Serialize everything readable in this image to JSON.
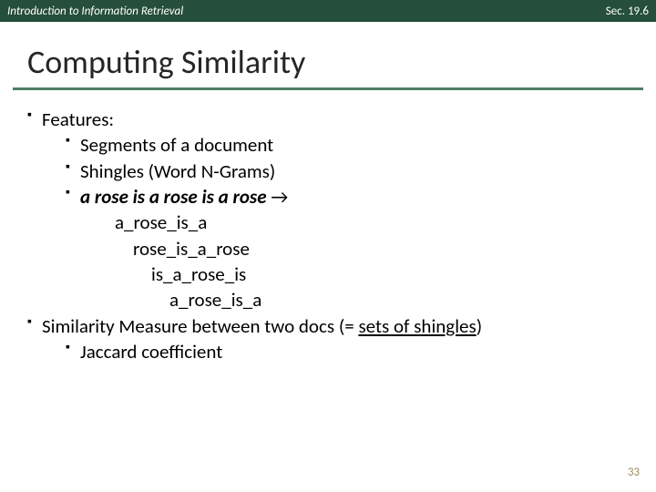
{
  "header": {
    "left": "Introduction to Information Retrieval",
    "right": "Sec. 19.6"
  },
  "title": "Computing Similarity",
  "bullets": {
    "features": "Features:",
    "segments": "Segments of a document",
    "shingles": "Shingles (Word N-Grams)",
    "rose_example": "a rose is a rose is a rose",
    "arrow": " →",
    "sh1": "a_rose_is_a",
    "sh2": "rose_is_a_rose",
    "sh3": "is_a_rose_is",
    "sh4": "a_rose_is_a",
    "sim_prefix": "Similarity Measure between two docs (= ",
    "sim_under": "sets of shingles",
    "sim_suffix": ")",
    "jaccard": "Jaccard coefficient"
  },
  "pagenum": "33",
  "colors": {
    "header_bg": "#254e3c",
    "underline": "#4f7e66",
    "pagenum": "#a28c5a"
  }
}
